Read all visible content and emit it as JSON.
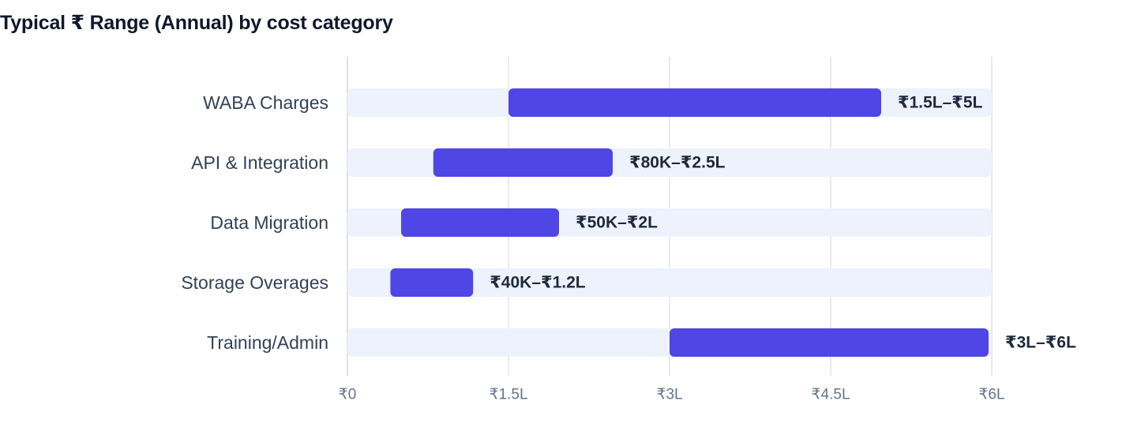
{
  "chart_data": {
    "type": "bar",
    "orientation": "horizontal",
    "variant": "floating-range",
    "title": "Typical ₹ Range (Annual) by cost category",
    "xlabel": "",
    "ylabel": "",
    "xlim": [
      0,
      600000
    ],
    "grid": true,
    "legend": "none",
    "categories": [
      "WABA Charges",
      "API & Integration",
      "Data Migration",
      "Storage Overages",
      "Training/Admin"
    ],
    "ranges": [
      {
        "low": 150000,
        "high": 500000
      },
      {
        "low": 80000,
        "high": 250000
      },
      {
        "low": 50000,
        "high": 200000
      },
      {
        "low": 40000,
        "high": 120000
      },
      {
        "low": 300000,
        "high": 600000
      }
    ],
    "labels": [
      "₹1.5L–₹5L",
      "₹80K–₹2.5L",
      "₹50K–₹2L",
      "₹40K–₹1.2L",
      "₹3L–₹6L"
    ],
    "ticks": [
      0,
      150000,
      300000,
      450000,
      600000
    ],
    "tick_labels": [
      "₹0",
      "₹1.5L",
      "₹3L",
      "₹4.5L",
      "₹6L"
    ],
    "colors": {
      "bar": "#4f46e5",
      "track": "#eef2fd",
      "grid": "#e2e4e9"
    }
  }
}
